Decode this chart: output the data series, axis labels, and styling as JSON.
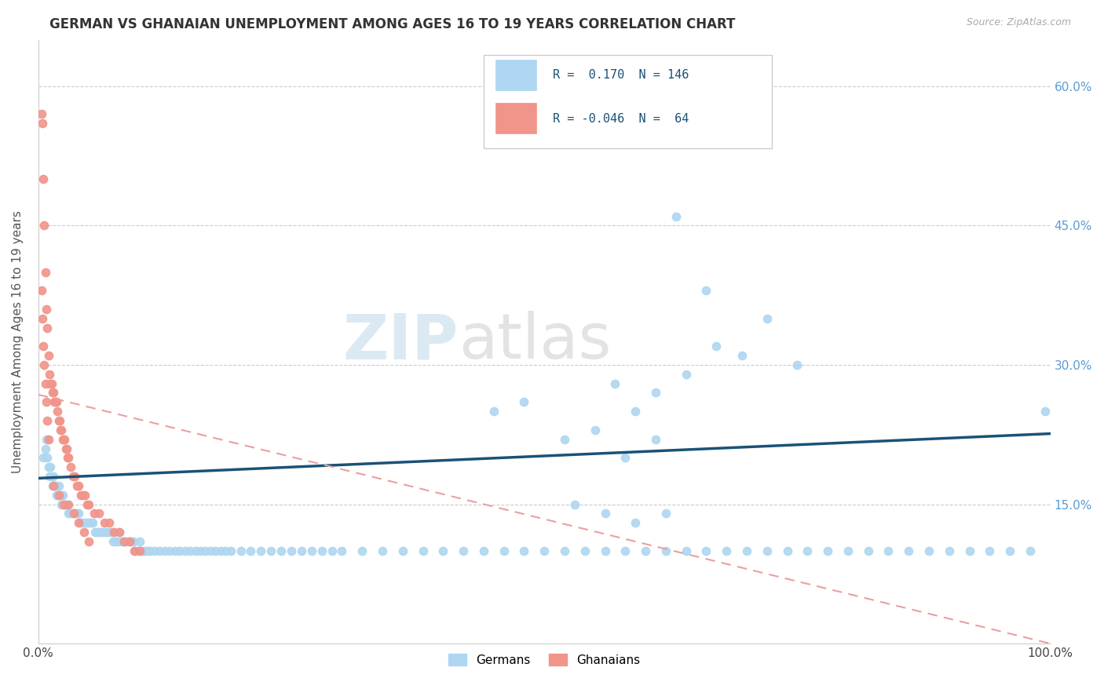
{
  "title": "GERMAN VS GHANAIAN UNEMPLOYMENT AMONG AGES 16 TO 19 YEARS CORRELATION CHART",
  "source": "Source: ZipAtlas.com",
  "ylabel": "Unemployment Among Ages 16 to 19 years",
  "xlim": [
    0.0,
    1.0
  ],
  "ylim": [
    0.0,
    0.65
  ],
  "x_tick_vals": [
    0.0,
    0.2,
    0.4,
    0.6,
    0.8,
    1.0
  ],
  "x_tick_labels": [
    "0.0%",
    "",
    "",
    "",
    "",
    "100.0%"
  ],
  "y_tick_vals": [
    0.15,
    0.3,
    0.45,
    0.6
  ],
  "y_tick_labels_right": [
    "15.0%",
    "30.0%",
    "45.0%",
    "60.0%"
  ],
  "german_color": "#AED6F1",
  "ghanaian_color": "#F1948A",
  "german_line_color": "#1A5276",
  "ghanaian_line_color": "#E8A0A0",
  "german_line_intercept": 0.178,
  "german_line_slope": 0.048,
  "ghanaian_line_intercept": 0.268,
  "ghanaian_line_slope": -0.268,
  "watermark_text": "ZIPatlas",
  "legend_r_german": " 0.170",
  "legend_n_german": "146",
  "legend_r_ghanaian": "-0.046",
  "legend_n_ghanaian": " 64",
  "german_x": [
    0.005,
    0.007,
    0.008,
    0.009,
    0.01,
    0.011,
    0.012,
    0.013,
    0.014,
    0.015,
    0.016,
    0.017,
    0.018,
    0.019,
    0.02,
    0.021,
    0.022,
    0.023,
    0.024,
    0.025,
    0.026,
    0.027,
    0.028,
    0.03,
    0.032,
    0.034,
    0.036,
    0.038,
    0.04,
    0.042,
    0.044,
    0.046,
    0.048,
    0.05,
    0.052,
    0.054,
    0.056,
    0.058,
    0.06,
    0.062,
    0.064,
    0.066,
    0.068,
    0.07,
    0.072,
    0.074,
    0.076,
    0.078,
    0.08,
    0.082,
    0.084,
    0.086,
    0.088,
    0.09,
    0.092,
    0.094,
    0.096,
    0.098,
    0.1,
    0.102,
    0.104,
    0.106,
    0.108,
    0.11,
    0.115,
    0.12,
    0.125,
    0.13,
    0.135,
    0.14,
    0.145,
    0.15,
    0.155,
    0.16,
    0.165,
    0.17,
    0.175,
    0.18,
    0.185,
    0.19,
    0.2,
    0.21,
    0.22,
    0.23,
    0.24,
    0.25,
    0.26,
    0.27,
    0.28,
    0.29,
    0.3,
    0.32,
    0.34,
    0.36,
    0.38,
    0.4,
    0.42,
    0.44,
    0.46,
    0.48,
    0.5,
    0.52,
    0.54,
    0.56,
    0.58,
    0.6,
    0.62,
    0.64,
    0.66,
    0.68,
    0.7,
    0.72,
    0.74,
    0.76,
    0.78,
    0.8,
    0.82,
    0.84,
    0.86,
    0.88,
    0.9,
    0.92,
    0.94,
    0.96,
    0.98,
    0.995,
    0.45,
    0.48,
    0.52,
    0.55,
    0.57,
    0.59,
    0.61,
    0.64,
    0.67,
    0.695,
    0.63,
    0.66,
    0.72,
    0.75,
    0.58,
    0.61,
    0.53,
    0.56,
    0.59,
    0.62
  ],
  "german_y": [
    0.2,
    0.21,
    0.22,
    0.2,
    0.19,
    0.18,
    0.19,
    0.18,
    0.17,
    0.18,
    0.17,
    0.17,
    0.16,
    0.16,
    0.17,
    0.16,
    0.16,
    0.15,
    0.16,
    0.15,
    0.15,
    0.15,
    0.15,
    0.14,
    0.14,
    0.14,
    0.14,
    0.14,
    0.14,
    0.13,
    0.13,
    0.13,
    0.13,
    0.13,
    0.13,
    0.13,
    0.12,
    0.12,
    0.12,
    0.12,
    0.12,
    0.12,
    0.12,
    0.12,
    0.12,
    0.11,
    0.11,
    0.11,
    0.12,
    0.11,
    0.11,
    0.11,
    0.11,
    0.11,
    0.11,
    0.11,
    0.1,
    0.1,
    0.11,
    0.1,
    0.1,
    0.1,
    0.1,
    0.1,
    0.1,
    0.1,
    0.1,
    0.1,
    0.1,
    0.1,
    0.1,
    0.1,
    0.1,
    0.1,
    0.1,
    0.1,
    0.1,
    0.1,
    0.1,
    0.1,
    0.1,
    0.1,
    0.1,
    0.1,
    0.1,
    0.1,
    0.1,
    0.1,
    0.1,
    0.1,
    0.1,
    0.1,
    0.1,
    0.1,
    0.1,
    0.1,
    0.1,
    0.1,
    0.1,
    0.1,
    0.1,
    0.1,
    0.1,
    0.1,
    0.1,
    0.1,
    0.1,
    0.1,
    0.1,
    0.1,
    0.1,
    0.1,
    0.1,
    0.1,
    0.1,
    0.1,
    0.1,
    0.1,
    0.1,
    0.1,
    0.1,
    0.1,
    0.1,
    0.1,
    0.1,
    0.25,
    0.25,
    0.26,
    0.22,
    0.23,
    0.28,
    0.25,
    0.27,
    0.29,
    0.32,
    0.31,
    0.46,
    0.38,
    0.35,
    0.3,
    0.2,
    0.22,
    0.15,
    0.14,
    0.13,
    0.14
  ],
  "ghanaian_x": [
    0.003,
    0.004,
    0.005,
    0.006,
    0.007,
    0.008,
    0.009,
    0.01,
    0.011,
    0.012,
    0.013,
    0.014,
    0.015,
    0.016,
    0.017,
    0.018,
    0.019,
    0.02,
    0.021,
    0.022,
    0.023,
    0.024,
    0.025,
    0.026,
    0.027,
    0.028,
    0.029,
    0.03,
    0.032,
    0.034,
    0.036,
    0.038,
    0.04,
    0.042,
    0.044,
    0.046,
    0.048,
    0.05,
    0.055,
    0.06,
    0.065,
    0.07,
    0.075,
    0.08,
    0.085,
    0.09,
    0.095,
    0.1,
    0.003,
    0.004,
    0.005,
    0.006,
    0.007,
    0.008,
    0.009,
    0.01,
    0.015,
    0.02,
    0.025,
    0.03,
    0.035,
    0.04,
    0.045,
    0.05
  ],
  "ghanaian_y": [
    0.57,
    0.56,
    0.5,
    0.45,
    0.4,
    0.36,
    0.34,
    0.31,
    0.29,
    0.28,
    0.28,
    0.27,
    0.27,
    0.26,
    0.26,
    0.26,
    0.25,
    0.24,
    0.24,
    0.23,
    0.23,
    0.22,
    0.22,
    0.22,
    0.21,
    0.21,
    0.2,
    0.2,
    0.19,
    0.18,
    0.18,
    0.17,
    0.17,
    0.16,
    0.16,
    0.16,
    0.15,
    0.15,
    0.14,
    0.14,
    0.13,
    0.13,
    0.12,
    0.12,
    0.11,
    0.11,
    0.1,
    0.1,
    0.38,
    0.35,
    0.32,
    0.3,
    0.28,
    0.26,
    0.24,
    0.22,
    0.17,
    0.16,
    0.15,
    0.15,
    0.14,
    0.13,
    0.12,
    0.11
  ]
}
